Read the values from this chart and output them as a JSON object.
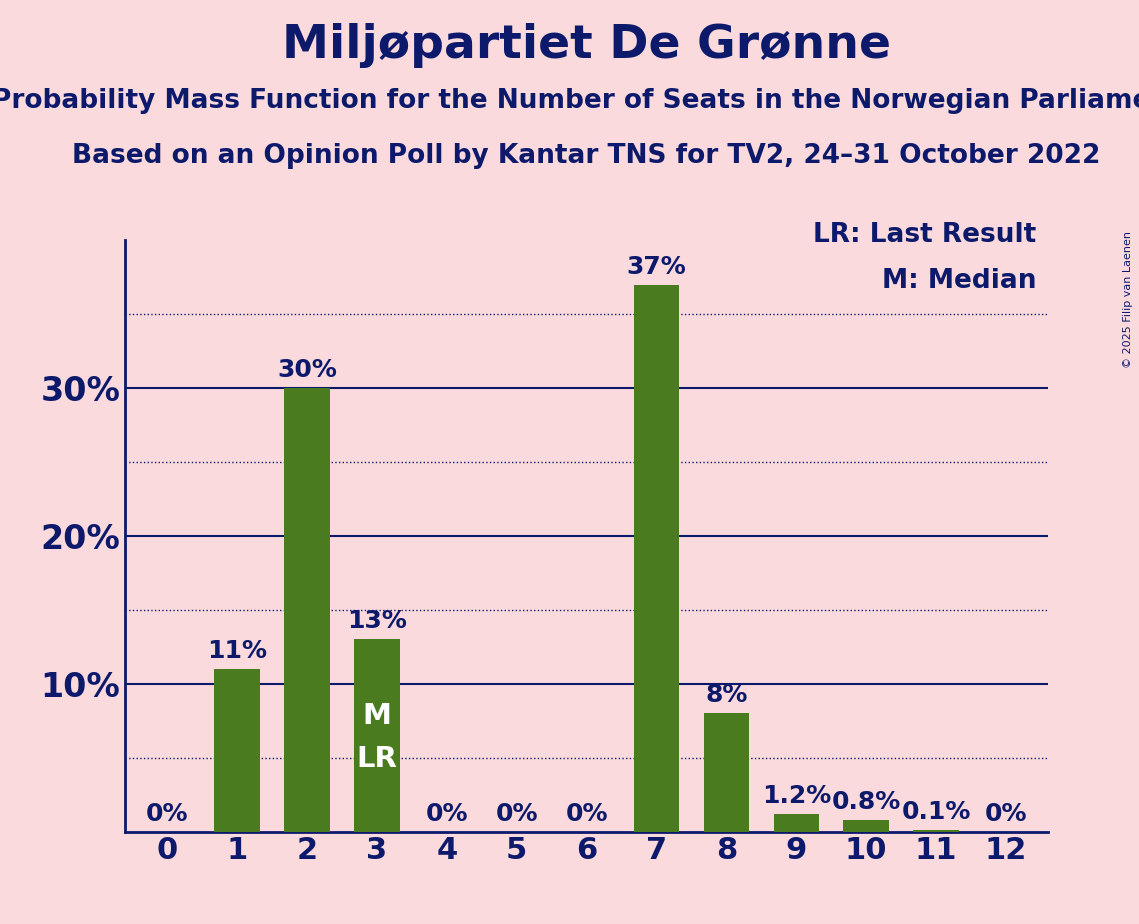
{
  "title": "Miljøpartiet De Grønne",
  "subtitle1": "Probability Mass Function for the Number of Seats in the Norwegian Parliament",
  "subtitle2": "Based on an Opinion Poll by Kantar TNS for TV2, 24–31 October 2022",
  "copyright": "© 2025 Filip van Laenen",
  "categories": [
    0,
    1,
    2,
    3,
    4,
    5,
    6,
    7,
    8,
    9,
    10,
    11,
    12
  ],
  "values": [
    0.0,
    11.0,
    30.0,
    13.0,
    0.0,
    0.0,
    0.0,
    37.0,
    8.0,
    1.2,
    0.8,
    0.1,
    0.0
  ],
  "labels": [
    "0%",
    "11%",
    "30%",
    "13%",
    "0%",
    "0%",
    "0%",
    "37%",
    "8%",
    "1.2%",
    "0.8%",
    "0.1%",
    "0%"
  ],
  "bar_color": "#4a7c1f",
  "background_color": "#fadadd",
  "text_color": "#0d1a6b",
  "grid_color": "#0d1a6b",
  "bar_label_color": "#0d1a6b",
  "bar_label_color_inside": "#ffffff",
  "median_seat": 3,
  "lr_seat": 3,
  "median_label": "M",
  "lr_label": "LR",
  "legend_lr": "LR: Last Result",
  "legend_m": "M: Median",
  "ylim": [
    0,
    40
  ],
  "dotted_line_values": [
    5,
    15,
    25,
    35
  ],
  "solid_line_values": [
    10,
    20,
    30
  ],
  "title_fontsize": 34,
  "subtitle_fontsize": 19,
  "axis_fontsize": 22,
  "bar_label_fontsize": 18,
  "inside_label_fontsize": 21,
  "legend_fontsize": 19,
  "ytick_fontsize": 24,
  "copyright_fontsize": 8
}
